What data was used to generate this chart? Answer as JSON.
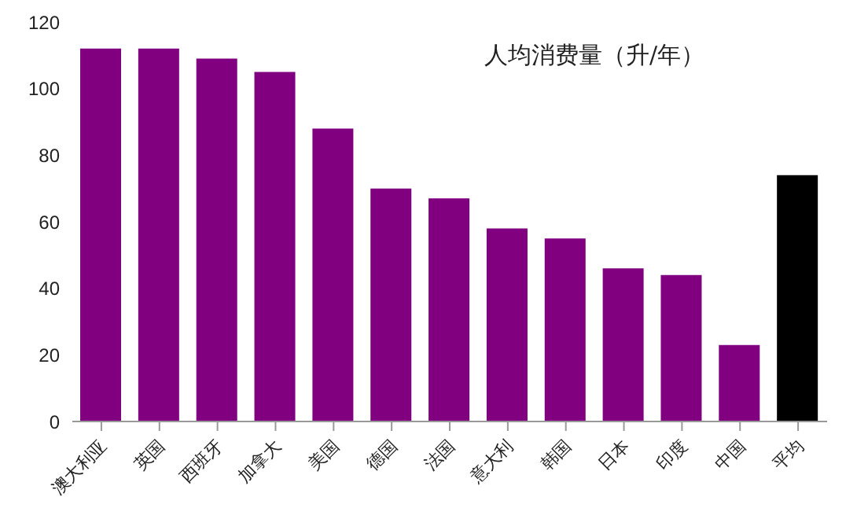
{
  "chart_data": {
    "type": "bar",
    "title": "人均消费量（升/年）",
    "categories": [
      "澳大利亚",
      "英国",
      "西班牙",
      "加拿大",
      "美国",
      "德国",
      "法国",
      "意大利",
      "韩国",
      "日本",
      "印度",
      "中国",
      "平均"
    ],
    "values": [
      112,
      112,
      109,
      105,
      88,
      70,
      67,
      58,
      55,
      46,
      44,
      23,
      74
    ],
    "colors": [
      "#800080",
      "#800080",
      "#800080",
      "#800080",
      "#800080",
      "#800080",
      "#800080",
      "#800080",
      "#800080",
      "#800080",
      "#800080",
      "#800080",
      "#000000"
    ],
    "ylim": [
      0,
      120
    ],
    "yticks": [
      0,
      20,
      40,
      60,
      80,
      100,
      120
    ],
    "grid": false
  }
}
